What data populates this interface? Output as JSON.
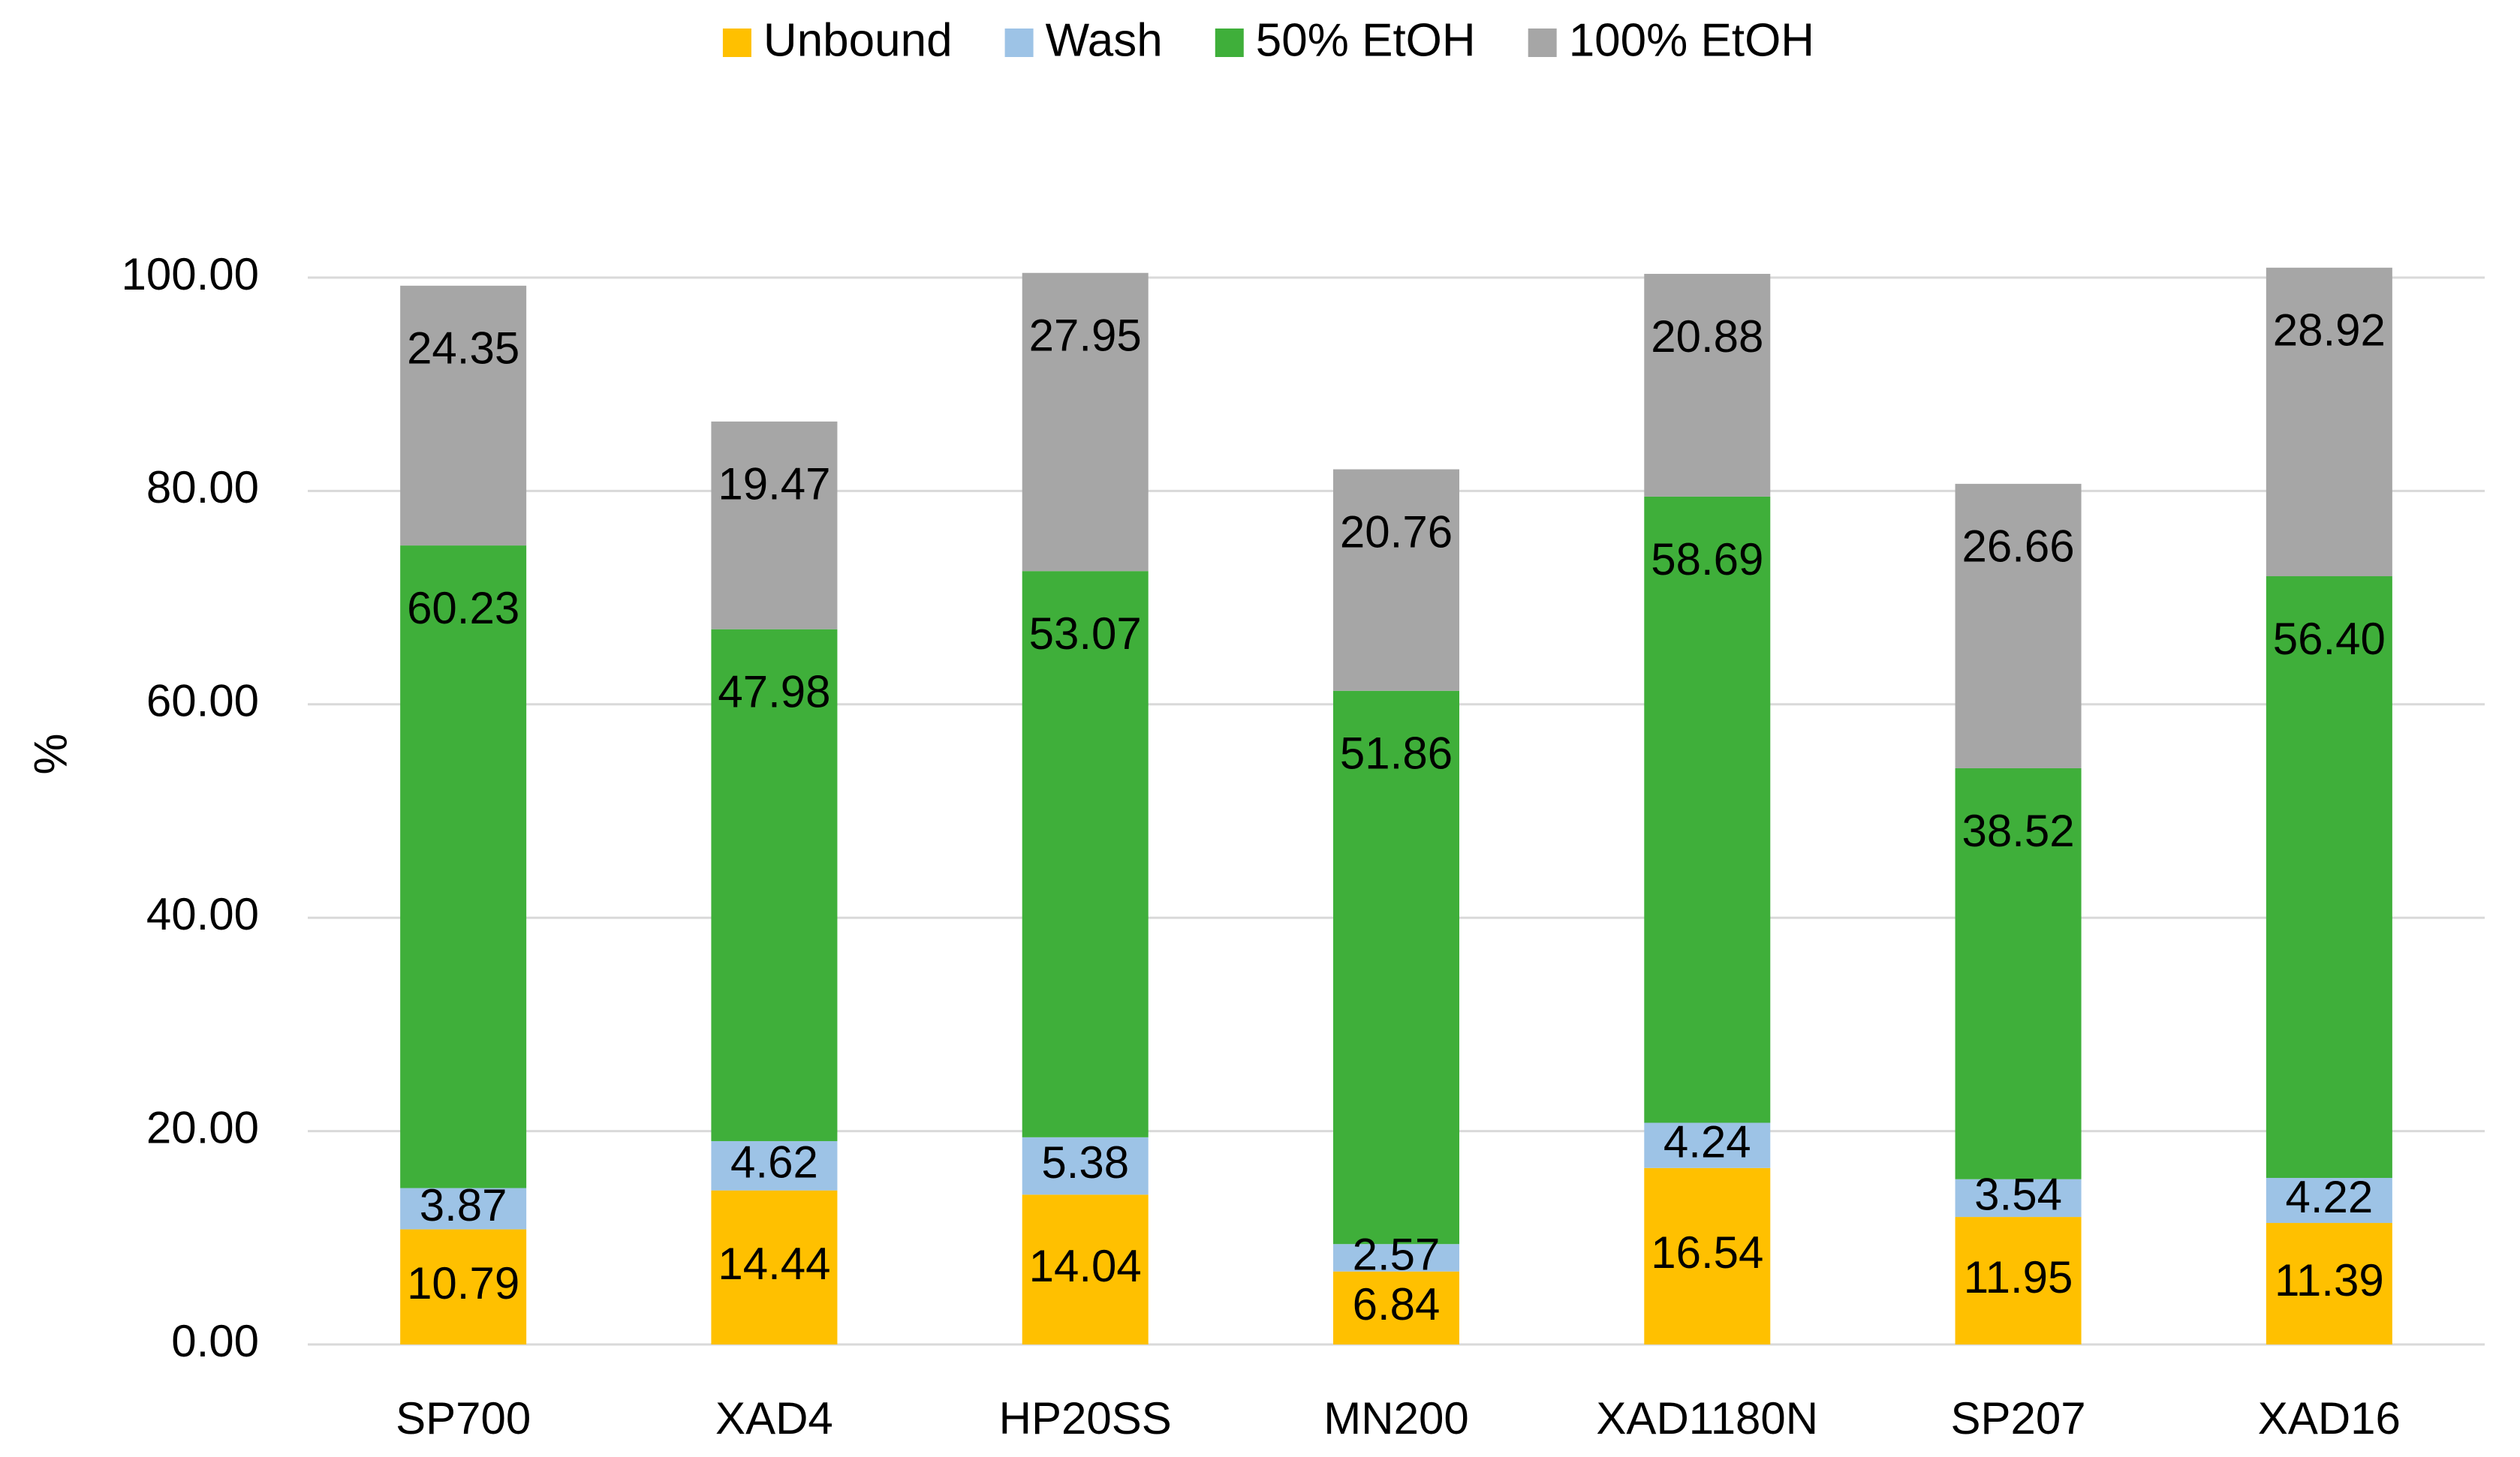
{
  "chart_data": {
    "type": "bar",
    "stacked": true,
    "title": "",
    "xlabel": "",
    "ylabel": "%",
    "ylim": [
      0,
      100
    ],
    "yticks": [
      0,
      20,
      40,
      60,
      80,
      100
    ],
    "ytick_labels": [
      "0.00",
      "20.00",
      "40.00",
      "60.00",
      "80.00",
      "100.00"
    ],
    "grid": true,
    "legend_position": "top-center",
    "categories": [
      "SP700",
      "XAD4",
      "HP20SS",
      "MN200",
      "XAD1180N",
      "SP207",
      "XAD16"
    ],
    "series": [
      {
        "name": "Unbound",
        "color": "#FFC000",
        "values": [
          10.79,
          14.44,
          14.04,
          6.84,
          16.54,
          11.95,
          11.39
        ],
        "labels": [
          "10.79",
          "14.44",
          "14.04",
          "6.84",
          "16.54",
          "11.95",
          "11.39"
        ]
      },
      {
        "name": "Wash",
        "color": "#9DC3E6",
        "values": [
          3.87,
          4.62,
          5.38,
          2.57,
          4.24,
          3.54,
          4.22
        ],
        "labels": [
          "3.87",
          "4.62",
          "5.38",
          "2.57",
          "4.24",
          "3.54",
          "4.22"
        ]
      },
      {
        "name": "50% EtOH",
        "color": "#3FAF3A",
        "values": [
          60.23,
          47.98,
          53.07,
          51.86,
          58.69,
          38.52,
          56.4
        ],
        "labels": [
          "60.23",
          "47.98",
          "53.07",
          "51.86",
          "58.69",
          "38.52",
          "56.40"
        ]
      },
      {
        "name": "100% EtOH",
        "color": "#A6A6A6",
        "values": [
          24.35,
          19.47,
          27.95,
          20.76,
          20.88,
          26.66,
          28.92
        ],
        "labels": [
          "24.35",
          "19.47",
          "27.95",
          "20.76",
          "20.88",
          "26.66",
          "28.92"
        ]
      }
    ]
  }
}
